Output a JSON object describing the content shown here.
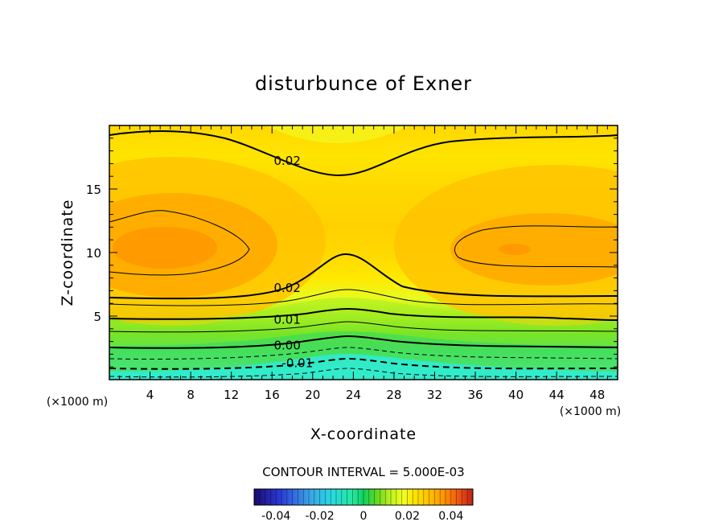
{
  "chart_data": {
    "type": "contour",
    "title": "disturbunce of Exner",
    "xlabel": "X-coordinate",
    "ylabel": "Z-coordinate",
    "x_unit_left": "(×1000 m)",
    "x_unit_right": "(×1000 m)",
    "xlim": [
      0,
      50
    ],
    "ylim": [
      0,
      20
    ],
    "x_ticks": [
      4,
      8,
      12,
      16,
      20,
      24,
      28,
      32,
      36,
      40,
      44,
      48
    ],
    "y_ticks": [
      5,
      10,
      15
    ],
    "contour_interval_text": "CONTOUR INTERVAL = 5.000E-03",
    "contour_labels": [
      {
        "text": "0.02",
        "x": 17.5,
        "z": 17.2
      },
      {
        "text": "0.02",
        "x": 17.5,
        "z": 7.2
      },
      {
        "text": "0.01",
        "x": 17.5,
        "z": 4.7
      },
      {
        "text": "0.00",
        "x": 17.5,
        "z": 2.7
      },
      {
        "text": "-0.01",
        "x": 18.5,
        "z": 1.3
      }
    ],
    "colorbar": {
      "range": [
        -0.05,
        0.05
      ],
      "ticks": [
        "-0.04",
        "-0.02",
        "0",
        "0.02",
        "0.04"
      ]
    },
    "colormap_stops": [
      "#1a0a6e",
      "#2a3bd8",
      "#3aa0e6",
      "#28d8e0",
      "#25e8a0",
      "#10d060",
      "#60d820",
      "#b8f020",
      "#f0ff20",
      "#ffe000",
      "#ffc000",
      "#ff9a00",
      "#f05a10",
      "#c0201a"
    ],
    "colors": {
      "background": "#ffffff",
      "field_max": "#ff9a00",
      "field_min": "#28f0f0"
    }
  }
}
